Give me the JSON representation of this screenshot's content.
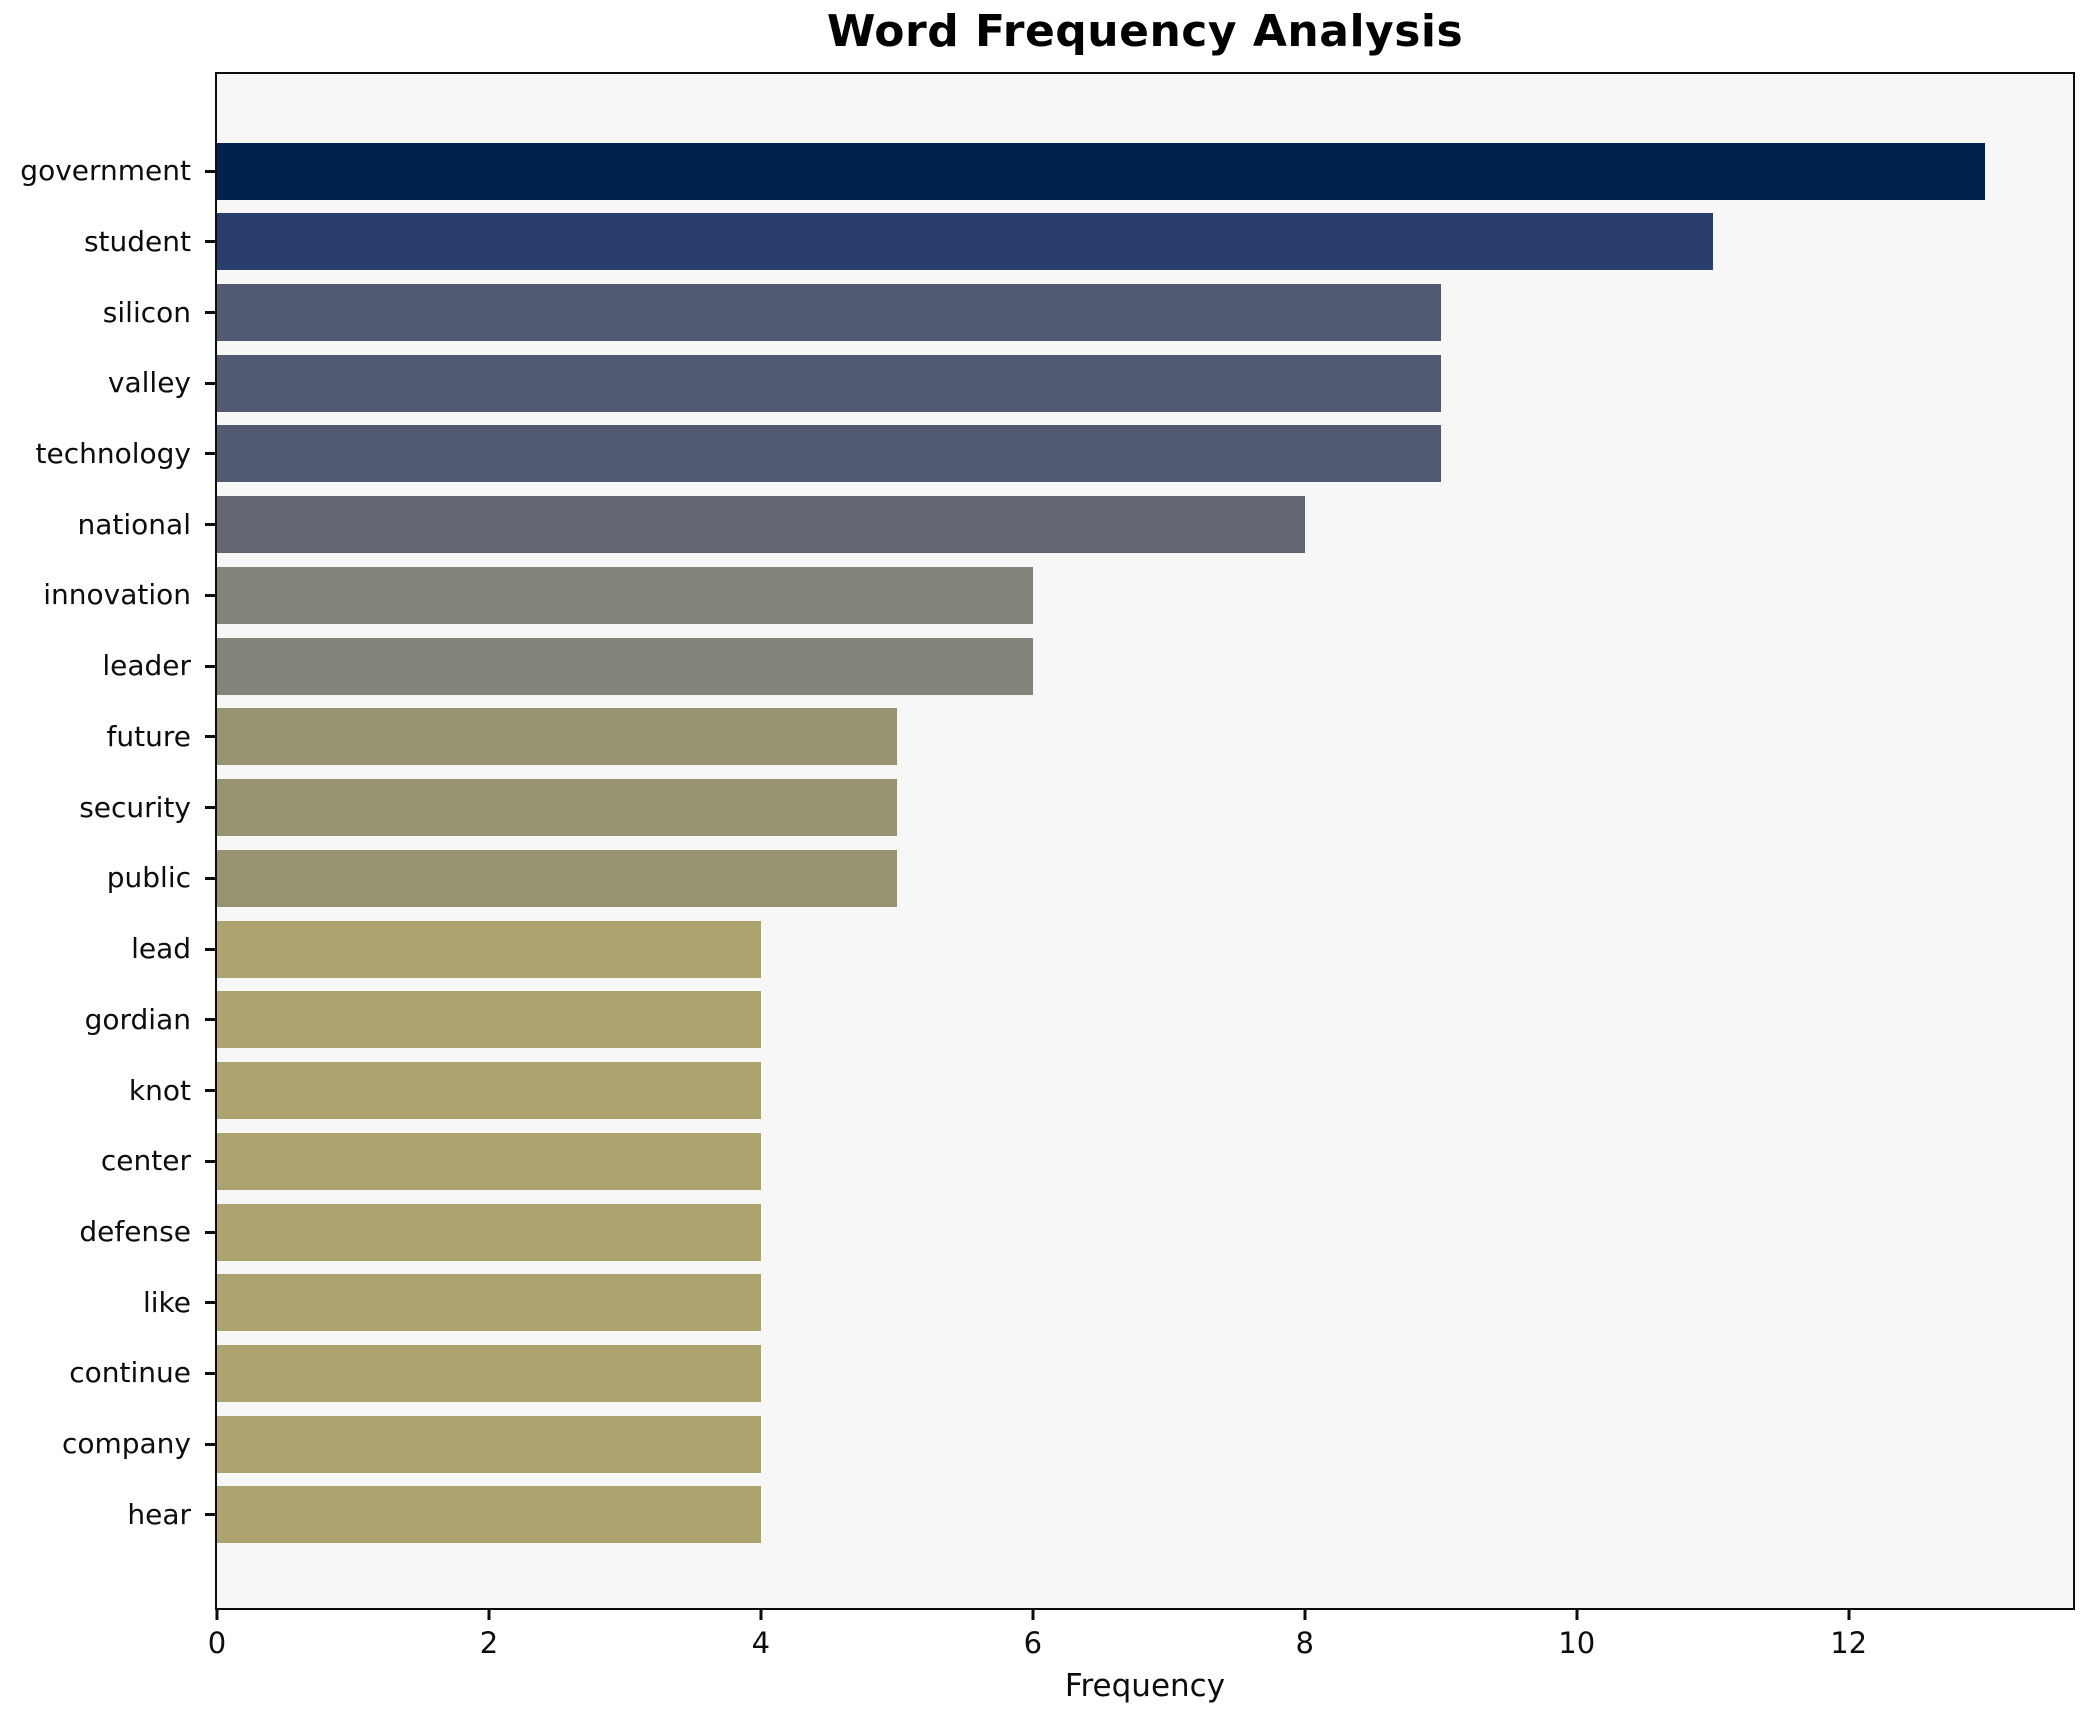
{
  "title": "Word Frequency Analysis",
  "xlabel": "Frequency",
  "colors": {
    "figure_background": "#ffffff",
    "plot_background": "#f7f7f8",
    "spine": "#0d0d0d",
    "text": "#000000"
  },
  "chart_data": {
    "type": "bar",
    "orientation": "horizontal",
    "title": "Word Frequency Analysis",
    "xlabel": "Frequency",
    "ylabel": "",
    "categories": [
      "government",
      "student",
      "silicon",
      "valley",
      "technology",
      "national",
      "innovation",
      "leader",
      "future",
      "security",
      "public",
      "lead",
      "gordian",
      "knot",
      "center",
      "defense",
      "like",
      "continue",
      "company",
      "hear"
    ],
    "values": [
      13,
      11,
      9,
      9,
      9,
      8,
      6,
      6,
      5,
      5,
      5,
      4,
      4,
      4,
      4,
      4,
      4,
      4,
      4,
      4
    ],
    "bar_colors": [
      "#00224e",
      "#2a3e6d",
      "#525a71",
      "#525a71",
      "#525a71",
      "#616671",
      "#84837a",
      "#84837a",
      "#989371",
      "#989371",
      "#989371",
      "#aca36f",
      "#aca36f",
      "#aca36f",
      "#aca36f",
      "#aca36f",
      "#aca36f",
      "#aca36f",
      "#aca36f",
      "#aca36f"
    ],
    "xlim": [
      0,
      13.65
    ],
    "xticks": [
      0,
      2,
      4,
      6,
      8,
      10,
      12
    ],
    "grid": false,
    "legend": null,
    "colormap": "cividis"
  }
}
